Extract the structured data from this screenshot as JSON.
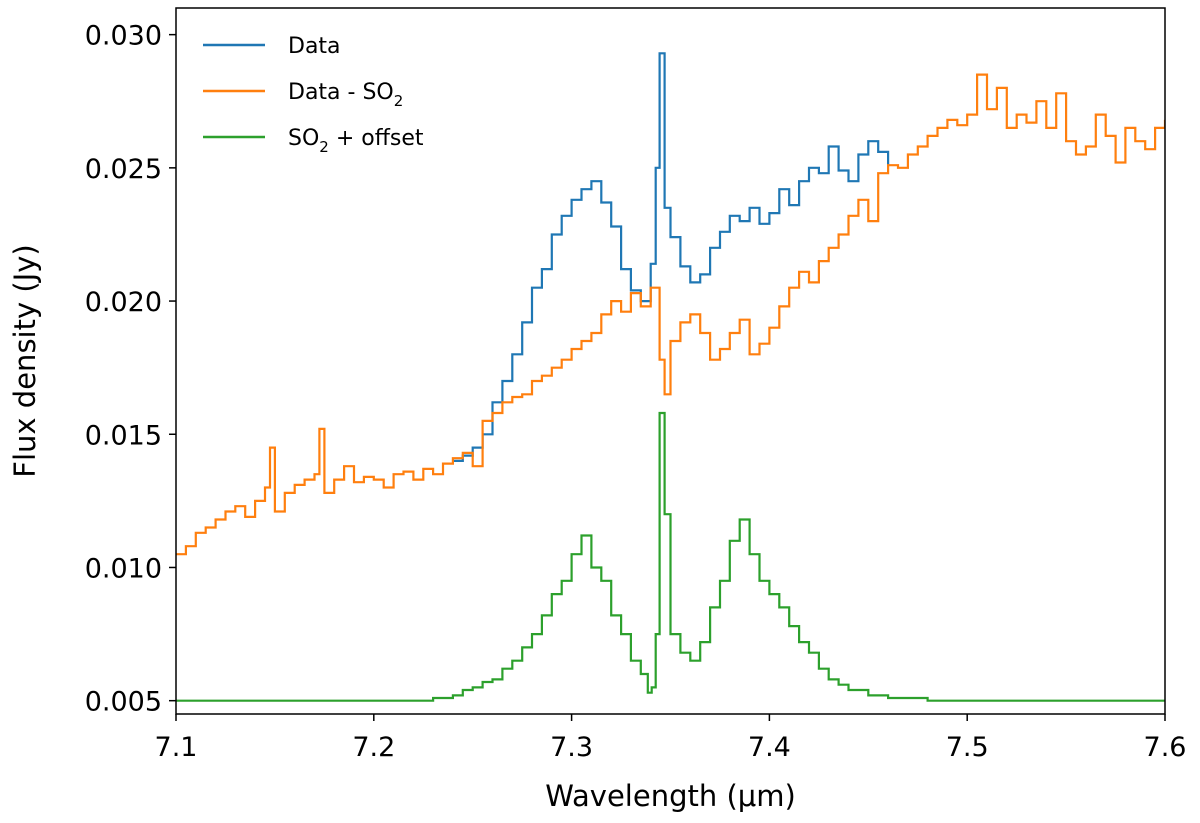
{
  "chart_data": {
    "type": "line",
    "title": "",
    "xlabel": "Wavelength (μm)",
    "ylabel": "Flux density (Jy)",
    "xlim": [
      7.1,
      7.6
    ],
    "ylim": [
      0.0045,
      0.031
    ],
    "xticks": [
      7.1,
      7.2,
      7.3,
      7.4,
      7.5,
      7.6
    ],
    "xtick_labels": [
      "7.1",
      "7.2",
      "7.3",
      "7.4",
      "7.5",
      "7.6"
    ],
    "yticks": [
      0.005,
      0.01,
      0.015,
      0.02,
      0.025,
      0.03
    ],
    "ytick_labels": [
      "0.005",
      "0.010",
      "0.015",
      "0.020",
      "0.025",
      "0.030"
    ],
    "grid": false,
    "legend_position": "top-left",
    "legend": [
      {
        "label_main": "Data",
        "label_sub": "",
        "label_tail": "",
        "color": "#1f77b4"
      },
      {
        "label_main": "Data - SO",
        "label_sub": "2",
        "label_tail": "",
        "color": "#ff7f0e"
      },
      {
        "label_main": "SO",
        "label_sub": "2",
        "label_tail": " + offset",
        "color": "#2ca02c"
      }
    ],
    "series": [
      {
        "name": "Data",
        "color": "#1f77b4",
        "x": [
          7.24,
          7.245,
          7.25,
          7.255,
          7.26,
          7.265,
          7.27,
          7.275,
          7.28,
          7.285,
          7.29,
          7.295,
          7.3,
          7.305,
          7.31,
          7.315,
          7.32,
          7.325,
          7.33,
          7.335,
          7.34,
          7.3425,
          7.3445,
          7.347,
          7.35,
          7.355,
          7.36,
          7.365,
          7.37,
          7.375,
          7.38,
          7.385,
          7.39,
          7.395,
          7.4,
          7.405,
          7.41,
          7.415,
          7.42,
          7.425,
          7.43,
          7.435,
          7.44,
          7.445,
          7.45,
          7.455,
          7.46
        ],
        "y": [
          0.014,
          0.0142,
          0.0145,
          0.015,
          0.0162,
          0.017,
          0.018,
          0.0192,
          0.0205,
          0.0212,
          0.0225,
          0.0232,
          0.0238,
          0.0242,
          0.0245,
          0.0237,
          0.0228,
          0.0212,
          0.0204,
          0.02,
          0.0214,
          0.025,
          0.0293,
          0.0235,
          0.0224,
          0.0213,
          0.0207,
          0.021,
          0.022,
          0.0226,
          0.0232,
          0.023,
          0.0235,
          0.0229,
          0.0233,
          0.0242,
          0.0236,
          0.0245,
          0.025,
          0.0248,
          0.0258,
          0.0249,
          0.0245,
          0.0255,
          0.026,
          0.0256,
          0.0251
        ]
      },
      {
        "name": "Data - SO2",
        "color": "#ff7f0e",
        "x": [
          7.1,
          7.105,
          7.11,
          7.115,
          7.12,
          7.125,
          7.13,
          7.135,
          7.14,
          7.145,
          7.1475,
          7.15,
          7.155,
          7.16,
          7.165,
          7.17,
          7.1725,
          7.175,
          7.18,
          7.185,
          7.19,
          7.195,
          7.2,
          7.205,
          7.21,
          7.215,
          7.22,
          7.225,
          7.23,
          7.235,
          7.24,
          7.245,
          7.25,
          7.255,
          7.26,
          7.265,
          7.27,
          7.275,
          7.28,
          7.285,
          7.29,
          7.295,
          7.3,
          7.305,
          7.31,
          7.315,
          7.32,
          7.325,
          7.33,
          7.335,
          7.34,
          7.3445,
          7.347,
          7.35,
          7.355,
          7.36,
          7.365,
          7.37,
          7.375,
          7.38,
          7.385,
          7.39,
          7.395,
          7.4,
          7.405,
          7.41,
          7.415,
          7.42,
          7.425,
          7.43,
          7.435,
          7.44,
          7.445,
          7.45,
          7.455,
          7.46,
          7.465,
          7.47,
          7.475,
          7.48,
          7.485,
          7.49,
          7.495,
          7.5,
          7.505,
          7.51,
          7.515,
          7.52,
          7.525,
          7.53,
          7.535,
          7.54,
          7.545,
          7.55,
          7.555,
          7.56,
          7.565,
          7.57,
          7.575,
          7.58,
          7.585,
          7.59,
          7.595,
          7.6
        ],
        "y": [
          0.0105,
          0.0108,
          0.0113,
          0.0115,
          0.0118,
          0.0121,
          0.0123,
          0.0119,
          0.0125,
          0.013,
          0.0145,
          0.0121,
          0.0128,
          0.0131,
          0.0133,
          0.0135,
          0.0152,
          0.0128,
          0.0133,
          0.0138,
          0.0132,
          0.0134,
          0.0133,
          0.013,
          0.0135,
          0.0136,
          0.0133,
          0.0137,
          0.0135,
          0.0139,
          0.0141,
          0.0143,
          0.0138,
          0.0155,
          0.0158,
          0.0162,
          0.0164,
          0.0165,
          0.017,
          0.0172,
          0.0175,
          0.0178,
          0.0182,
          0.0185,
          0.0188,
          0.0195,
          0.02,
          0.0196,
          0.0203,
          0.0198,
          0.0205,
          0.0178,
          0.0165,
          0.0185,
          0.0192,
          0.0195,
          0.0188,
          0.0178,
          0.0182,
          0.0188,
          0.0193,
          0.018,
          0.0184,
          0.019,
          0.0198,
          0.0205,
          0.0211,
          0.0207,
          0.0215,
          0.022,
          0.0225,
          0.0232,
          0.0238,
          0.023,
          0.0248,
          0.0251,
          0.025,
          0.0255,
          0.0258,
          0.0262,
          0.0265,
          0.0268,
          0.0266,
          0.027,
          0.0285,
          0.0272,
          0.028,
          0.0265,
          0.027,
          0.0267,
          0.0275,
          0.0265,
          0.0278,
          0.026,
          0.0255,
          0.0258,
          0.027,
          0.0262,
          0.0252,
          0.0265,
          0.026,
          0.0257,
          0.0265,
          0.0268
        ]
      },
      {
        "name": "SO2 + offset",
        "color": "#2ca02c",
        "x": [
          7.1,
          7.2,
          7.22,
          7.23,
          7.24,
          7.245,
          7.25,
          7.255,
          7.26,
          7.265,
          7.27,
          7.275,
          7.28,
          7.285,
          7.29,
          7.295,
          7.3,
          7.305,
          7.31,
          7.315,
          7.32,
          7.325,
          7.33,
          7.335,
          7.3385,
          7.3405,
          7.3425,
          7.3445,
          7.347,
          7.35,
          7.355,
          7.36,
          7.365,
          7.37,
          7.375,
          7.38,
          7.385,
          7.39,
          7.395,
          7.4,
          7.405,
          7.41,
          7.415,
          7.42,
          7.425,
          7.43,
          7.435,
          7.44,
          7.45,
          7.46,
          7.48,
          7.5,
          7.6
        ],
        "y": [
          0.005,
          0.005,
          0.005,
          0.0051,
          0.0052,
          0.0054,
          0.0055,
          0.0057,
          0.0058,
          0.0062,
          0.0065,
          0.007,
          0.0075,
          0.0082,
          0.009,
          0.0095,
          0.0105,
          0.0112,
          0.01,
          0.0095,
          0.0082,
          0.0075,
          0.0065,
          0.006,
          0.0053,
          0.0055,
          0.0075,
          0.0158,
          0.012,
          0.0075,
          0.0068,
          0.0065,
          0.0072,
          0.0085,
          0.0095,
          0.011,
          0.0118,
          0.0105,
          0.0095,
          0.009,
          0.0085,
          0.0078,
          0.0072,
          0.0068,
          0.0062,
          0.0058,
          0.0056,
          0.0054,
          0.0052,
          0.0051,
          0.005,
          0.005,
          0.005
        ]
      }
    ]
  }
}
